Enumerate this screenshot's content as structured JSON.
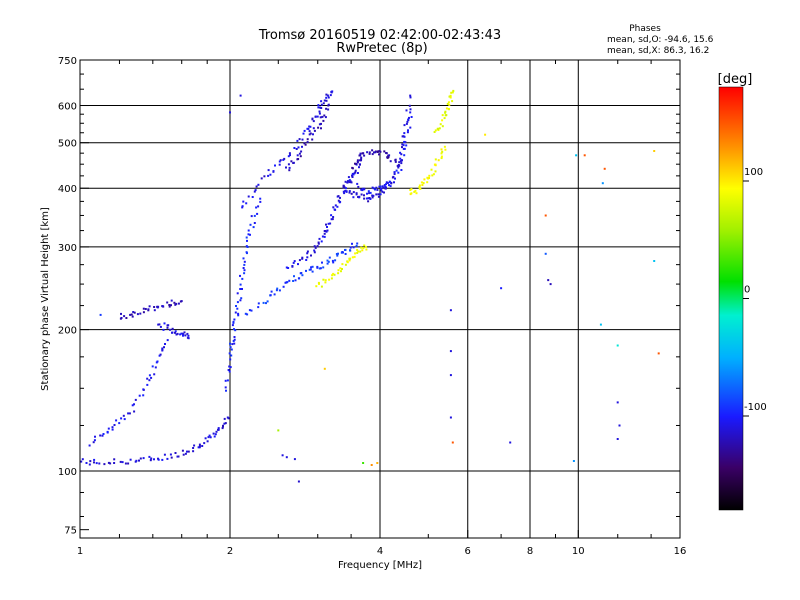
{
  "title_line1": "Tromsø 20160519 02:42:00-02:43:43",
  "title_line2": "RwPretec (8p)",
  "stats": {
    "header": "Phases",
    "line_o": "mean, sd,O: -94.6, 15.6",
    "line_x": "mean, sd,X: 86.3, 16.2"
  },
  "colorbar": {
    "unit": "[deg]",
    "range": [
      -180,
      180
    ],
    "ticks": [
      {
        "value": 100,
        "label": "100"
      },
      {
        "value": 0,
        "label": "0"
      },
      {
        "value": -100,
        "label": "-100"
      }
    ]
  },
  "colors": {
    "frame": "#000000",
    "o_trace": "#2a3ae0",
    "x_trace": "#e6e600"
  },
  "chart_data": {
    "type": "scatter",
    "xlabel": "Frequency [MHz]",
    "ylabel": "Stationary phase Virtual Height [km]",
    "xscale": "log",
    "yscale": "log",
    "xlim": [
      1,
      16
    ],
    "ylim": [
      72,
      750
    ],
    "xticks": [
      {
        "value": 1,
        "label": "1"
      },
      {
        "value": 2,
        "label": "2"
      },
      {
        "value": 4,
        "label": "4"
      },
      {
        "value": 6,
        "label": "6"
      },
      {
        "value": 8,
        "label": "8"
      },
      {
        "value": 10,
        "label": "10"
      },
      {
        "value": 16,
        "label": "16"
      }
    ],
    "xgrid": [
      2,
      4,
      6,
      8,
      10
    ],
    "yticks": [
      {
        "value": 75,
        "label": "75"
      },
      {
        "value": 100,
        "label": "100"
      },
      {
        "value": 200,
        "label": "200"
      },
      {
        "value": 300,
        "label": "300"
      },
      {
        "value": 400,
        "label": "400"
      },
      {
        "value": 500,
        "label": "500"
      },
      {
        "value": 600,
        "label": "600"
      },
      {
        "value": 750,
        "label": "750"
      }
    ],
    "ygrid": [
      100,
      200,
      300,
      400,
      500,
      600
    ],
    "traces": [
      {
        "x": [
          1.0,
          1.1,
          1.25,
          1.4,
          1.55,
          1.7,
          1.8,
          1.9,
          1.98
        ],
        "y": [
          105,
          104,
          105,
          106,
          108,
          112,
          116,
          122,
          130
        ],
        "phase": -112
      },
      {
        "x": [
          1.2,
          1.3,
          1.4,
          1.5,
          1.6
        ],
        "y": [
          213,
          217,
          222,
          226,
          230
        ],
        "phase": -120
      },
      {
        "x": [
          1.45,
          1.52,
          1.6,
          1.65
        ],
        "y": [
          205,
          200,
          196,
          194
        ],
        "phase": -108
      },
      {
        "x": [
          1.05,
          1.15,
          1.25,
          1.35,
          1.42,
          1.5
        ],
        "y": [
          115,
          122,
          132,
          150,
          170,
          190
        ],
        "phase": -105
      },
      {
        "x": [
          1.97,
          2.0,
          2.03,
          2.07,
          2.1,
          2.15,
          2.2,
          2.3
        ],
        "y": [
          150,
          175,
          195,
          220,
          250,
          290,
          330,
          380
        ],
        "phase": -98
      },
      {
        "x": [
          2.15,
          2.4,
          2.6,
          2.8,
          3.0,
          3.2,
          3.4,
          3.6
        ],
        "y": [
          215,
          235,
          250,
          262,
          272,
          282,
          292,
          305
        ],
        "phase": -90
      },
      {
        "x": [
          2.6,
          2.8,
          3.0,
          3.1,
          3.2,
          3.3,
          3.4,
          3.5,
          3.6,
          3.65
        ],
        "y": [
          270,
          282,
          300,
          320,
          345,
          375,
          400,
          420,
          440,
          470
        ],
        "phase": -110
      },
      {
        "x": [
          3.4,
          3.6,
          3.8,
          4.0,
          4.2,
          4.4,
          4.5,
          4.6
        ],
        "y": [
          400,
          385,
          380,
          390,
          410,
          460,
          530,
          630
        ],
        "phase": -112
      },
      {
        "x": [
          3.6,
          3.8,
          4.0,
          4.2,
          4.4,
          4.5,
          4.6
        ],
        "y": [
          405,
          395,
          398,
          410,
          445,
          500,
          580
        ],
        "phase": -105
      },
      {
        "x": [
          2.1,
          2.3,
          2.5,
          2.7,
          2.9,
          3.0,
          3.1,
          3.2
        ],
        "y": [
          360,
          410,
          450,
          490,
          540,
          580,
          620,
          640
        ],
        "phase": -110
      },
      {
        "x": [
          2.6,
          2.75,
          2.9,
          3.05,
          3.15
        ],
        "y": [
          440,
          470,
          510,
          555,
          600
        ],
        "phase": -120
      },
      {
        "x": [
          3.5,
          3.7,
          3.9,
          4.1,
          4.3
        ],
        "y": [
          445,
          470,
          480,
          470,
          460
        ],
        "phase": -125
      },
      {
        "x": [
          3.0,
          3.2,
          3.4,
          3.6,
          3.75
        ],
        "y": [
          245,
          260,
          275,
          290,
          300
        ],
        "phase": 88
      },
      {
        "x": [
          4.6,
          4.8,
          5.0,
          5.2,
          5.4
        ],
        "y": [
          390,
          400,
          420,
          450,
          490
        ],
        "phase": 90
      },
      {
        "x": [
          5.2,
          5.35,
          5.5,
          5.6
        ],
        "y": [
          520,
          560,
          600,
          640
        ],
        "phase": 85
      }
    ],
    "points": [
      {
        "x": 2.55,
        "y": 108,
        "phase": -110
      },
      {
        "x": 2.6,
        "y": 107,
        "phase": -110
      },
      {
        "x": 2.7,
        "y": 106,
        "phase": -110
      },
      {
        "x": 2.75,
        "y": 95,
        "phase": -115
      },
      {
        "x": 2.5,
        "y": 122,
        "phase": 60
      },
      {
        "x": 3.85,
        "y": 103,
        "phase": 130
      },
      {
        "x": 3.95,
        "y": 104,
        "phase": 120
      },
      {
        "x": 3.7,
        "y": 104,
        "phase": 30
      },
      {
        "x": 3.1,
        "y": 165,
        "phase": 110
      },
      {
        "x": 5.55,
        "y": 220,
        "phase": -110
      },
      {
        "x": 5.55,
        "y": 180,
        "phase": -110
      },
      {
        "x": 5.55,
        "y": 160,
        "phase": -110
      },
      {
        "x": 5.55,
        "y": 130,
        "phase": -110
      },
      {
        "x": 5.6,
        "y": 115,
        "phase": 150
      },
      {
        "x": 6.5,
        "y": 520,
        "phase": 100
      },
      {
        "x": 7.0,
        "y": 245,
        "phase": -100
      },
      {
        "x": 7.3,
        "y": 115,
        "phase": -110
      },
      {
        "x": 8.6,
        "y": 350,
        "phase": 150
      },
      {
        "x": 8.6,
        "y": 290,
        "phase": -80
      },
      {
        "x": 8.7,
        "y": 255,
        "phase": -120
      },
      {
        "x": 8.8,
        "y": 250,
        "phase": -120
      },
      {
        "x": 9.9,
        "y": 470,
        "phase": -40
      },
      {
        "x": 10.3,
        "y": 470,
        "phase": 150
      },
      {
        "x": 9.8,
        "y": 105,
        "phase": -60
      },
      {
        "x": 11.3,
        "y": 440,
        "phase": 150
      },
      {
        "x": 11.2,
        "y": 410,
        "phase": -60
      },
      {
        "x": 11.1,
        "y": 205,
        "phase": -40
      },
      {
        "x": 12.0,
        "y": 185,
        "phase": -20
      },
      {
        "x": 12.0,
        "y": 140,
        "phase": -110
      },
      {
        "x": 12.1,
        "y": 125,
        "phase": -110
      },
      {
        "x": 12.0,
        "y": 117,
        "phase": -110
      },
      {
        "x": 14.2,
        "y": 480,
        "phase": 110
      },
      {
        "x": 14.2,
        "y": 280,
        "phase": -40
      },
      {
        "x": 14.5,
        "y": 178,
        "phase": 150
      },
      {
        "x": 2.0,
        "y": 580,
        "phase": -110
      },
      {
        "x": 2.1,
        "y": 630,
        "phase": -110
      },
      {
        "x": 1.1,
        "y": 215,
        "phase": -90
      }
    ]
  }
}
